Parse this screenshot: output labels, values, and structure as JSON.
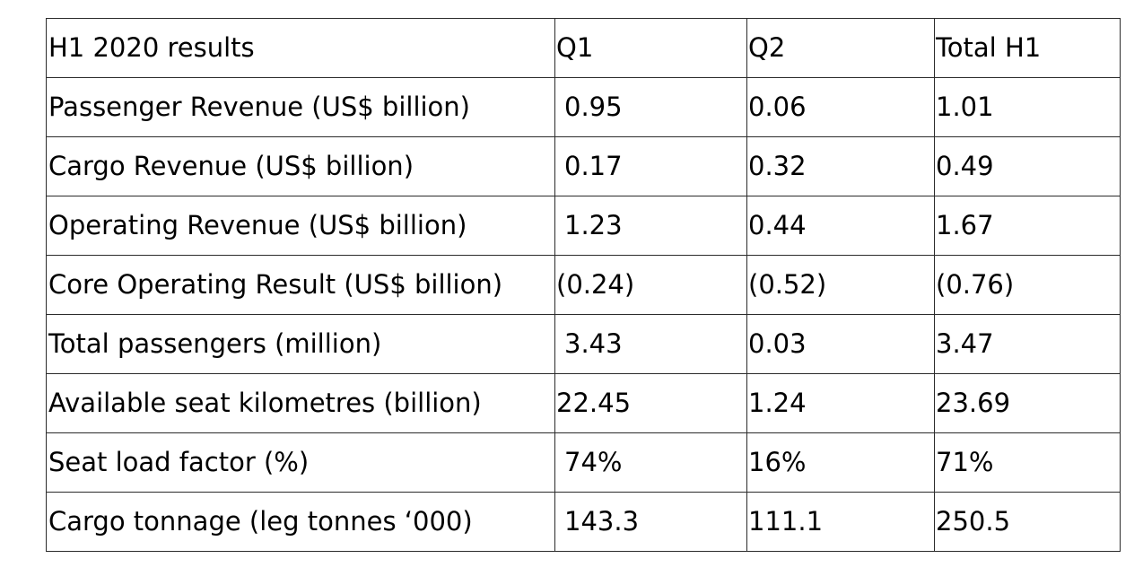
{
  "table": {
    "header": {
      "label": "H1 2020 results",
      "q1": "Q1",
      "q2": "Q2",
      "total": "Total H1"
    },
    "rows": [
      {
        "label": "Passenger Revenue (US$ billion)",
        "q1": "0.95",
        "q2": "0.06",
        "total": "1.01"
      },
      {
        "label": "Cargo Revenue (US$ billion)",
        "q1": "0.17",
        "q2": "0.32",
        "total": "0.49"
      },
      {
        "label": "Operating Revenue (US$ billion)",
        "q1": "1.23",
        "q2": "0.44",
        "total": "1.67"
      },
      {
        "label": "Core Operating Result (US$ billion)",
        "q1": "(0.24)",
        "q2": "(0.52)",
        "total": "(0.76)"
      },
      {
        "label": "Total passengers (million)",
        "q1": "3.43",
        "q2": "0.03",
        "total": "3.47"
      },
      {
        "label": "Available seat kilometres (billion)",
        "q1": "22.45",
        "q2": "1.24",
        "total": "23.69"
      },
      {
        "label": "Seat load factor (%)",
        "q1": "74%",
        "q2": "16%",
        "total": "71%"
      },
      {
        "label": "Cargo tonnage (leg tonnes ‘000)",
        "q1": "143.3",
        "q2": "111.1",
        "total": "250.5"
      }
    ]
  },
  "colors": {
    "border": "#2b2b2b",
    "text": "#000000",
    "background": "#ffffff"
  }
}
